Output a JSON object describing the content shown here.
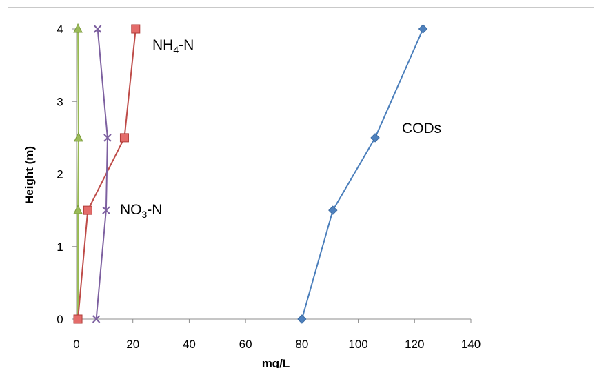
{
  "chart_data": {
    "type": "line",
    "xlabel": "mg/L",
    "ylabel": "Height (m)",
    "xlim": [
      0,
      140
    ],
    "ylim": [
      0,
      4
    ],
    "xticks": [
      "0",
      "20",
      "40",
      "60",
      "80",
      "100",
      "120",
      "140"
    ],
    "yticks": [
      "0",
      "1",
      "2",
      "3",
      "4"
    ],
    "grid": false,
    "series": [
      {
        "name": "CODs",
        "label_main": "CODs",
        "label_sub": "",
        "label_tail": "",
        "color": "#4a7ebb",
        "marker": "diamond",
        "points": [
          [
            80,
            0
          ],
          [
            91,
            1.5
          ],
          [
            106,
            2.5
          ],
          [
            123,
            4
          ]
        ]
      },
      {
        "name": "NH4-N",
        "label_main": "NH",
        "label_sub": "4",
        "label_tail": "-N",
        "color": "#be4b48",
        "marker": "square",
        "points": [
          [
            0.5,
            0
          ],
          [
            4,
            1.5
          ],
          [
            17,
            2.5
          ],
          [
            21,
            4
          ]
        ]
      },
      {
        "name": "NO3-N",
        "label_main": "NO",
        "label_sub": "3",
        "label_tail": "-N",
        "color": "#7d60a0",
        "marker": "x",
        "points": [
          [
            7,
            0
          ],
          [
            10.5,
            1.5
          ],
          [
            11,
            2.5
          ],
          [
            7.5,
            4
          ]
        ]
      },
      {
        "name": "",
        "color": "#98b954",
        "marker": "triangle",
        "points": [
          [
            0.5,
            0
          ],
          [
            0.5,
            1.5
          ],
          [
            0.7,
            2.5
          ],
          [
            0.5,
            4
          ]
        ]
      }
    ]
  }
}
